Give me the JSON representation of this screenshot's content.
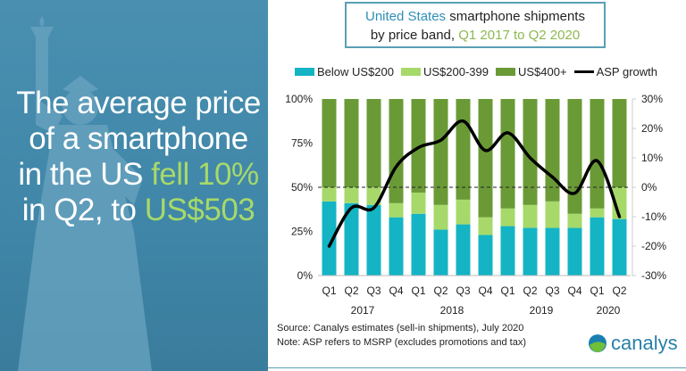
{
  "headline": {
    "l1": "The average price",
    "l2": "of a smartphone",
    "l3a": "in the US ",
    "l3b": "fell 10%",
    "l4a": "in Q2, to ",
    "l4b": "US$503"
  },
  "title": {
    "part1": "United States",
    "part2": " smartphone shipments",
    "part3": "by price band, ",
    "part4": "Q1 2017 to Q2 2020"
  },
  "notes": {
    "source": "Source: Canalys estimates (sell-in shipments), July 2020",
    "note": "Note: ASP refers to MSRP (excludes promotions and tax)"
  },
  "logo": {
    "text": "canalys"
  },
  "colors": {
    "below200": "#14b4c4",
    "mid": "#a6d96a",
    "high": "#6a9a36",
    "asp": "#000000",
    "panel": "#4a8fb0"
  },
  "chart_data": {
    "type": "bar",
    "stacked": true,
    "categories": [
      "Q1",
      "Q2",
      "Q3",
      "Q4",
      "Q1",
      "Q2",
      "Q3",
      "Q4",
      "Q1",
      "Q2",
      "Q3",
      "Q4",
      "Q1",
      "Q2"
    ],
    "years": [
      {
        "label": "2017",
        "start": 0,
        "end": 3
      },
      {
        "label": "2018",
        "start": 4,
        "end": 7
      },
      {
        "label": "2019",
        "start": 8,
        "end": 11
      },
      {
        "label": "2020",
        "start": 12,
        "end": 13
      }
    ],
    "series": [
      {
        "name": "Below US$200",
        "axis": "left",
        "values": [
          42,
          41,
          40,
          33,
          35,
          26,
          29,
          23,
          28,
          27,
          27,
          27,
          33,
          32
        ]
      },
      {
        "name": "US$200-399",
        "axis": "left",
        "values": [
          8,
          9,
          10,
          8,
          12,
          14,
          14,
          10,
          10,
          13,
          15,
          8,
          5,
          18
        ]
      },
      {
        "name": "US$400+",
        "axis": "left",
        "values": [
          50,
          50,
          50,
          59,
          53,
          60,
          57,
          67,
          62,
          60,
          58,
          65,
          62,
          50
        ]
      },
      {
        "name": "ASP growth",
        "type": "line",
        "axis": "right",
        "values": [
          -20,
          -7,
          -7,
          7,
          13.5,
          16,
          22.5,
          12.5,
          18.5,
          10,
          3.5,
          -2,
          9,
          -10
        ]
      }
    ],
    "yleft": {
      "ticks": [
        "0%",
        "25%",
        "50%",
        "75%",
        "100%"
      ],
      "range": [
        0,
        100
      ]
    },
    "yright": {
      "ticks": [
        "-30%",
        "-20%",
        "-10%",
        "0%",
        "10%",
        "20%",
        "30%"
      ],
      "range": [
        -30,
        30
      ]
    },
    "reference_line": "dashed at 0% ASP growth / 50% share",
    "legend": "top"
  }
}
